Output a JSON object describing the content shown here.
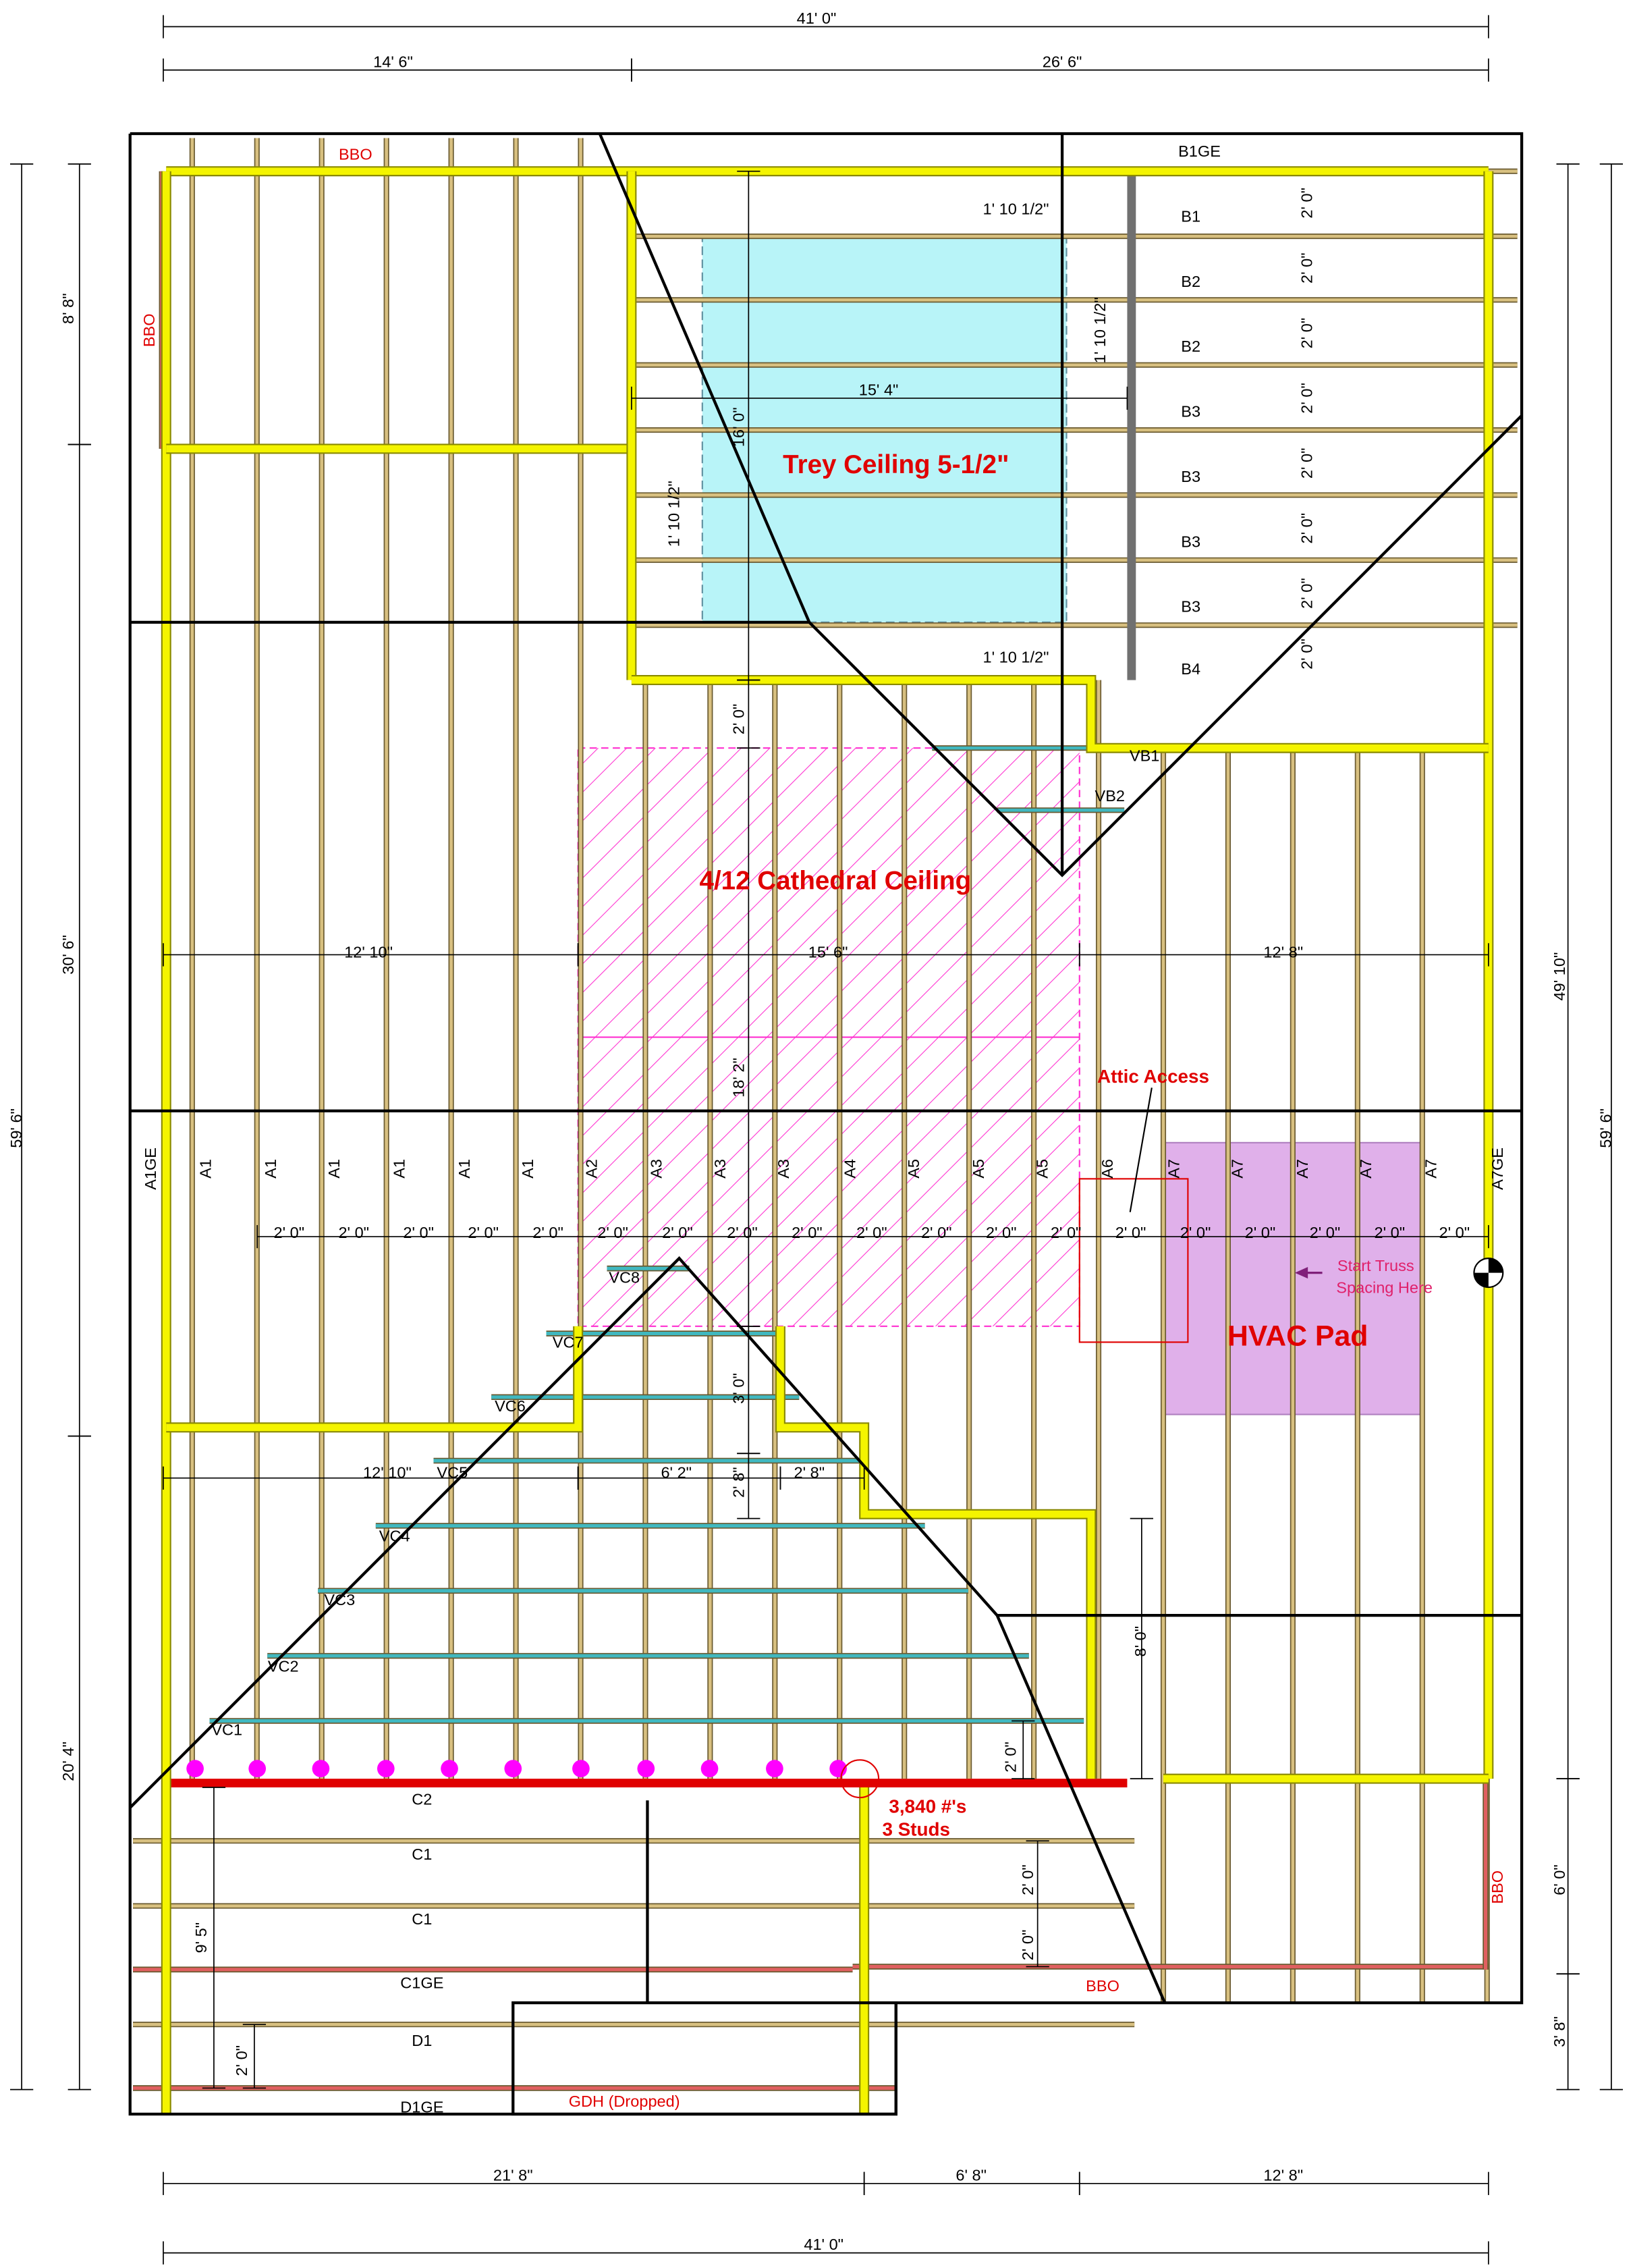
{
  "dimensions": {
    "top": [
      "41' 0\"",
      "14' 6\"",
      "26' 6\""
    ],
    "left": [
      "8' 8\"",
      "30' 6\"",
      "59' 6\"",
      "20' 4\""
    ],
    "right": [
      "49' 10\"",
      "59' 6\"",
      "6' 0\"",
      "3' 8\""
    ],
    "bottom": [
      "21' 8\"",
      "6' 8\"",
      "12' 8\"",
      "41' 0\""
    ],
    "interior": [
      "1' 10 1/2\"",
      "1' 10 1/2\"",
      "15' 4\"",
      "16' 0\"",
      "1' 10 1/2\"",
      "1' 10 1/2\"",
      "2' 0\"",
      "12' 10\"",
      "15' 6\"",
      "12' 8\"",
      "18' 2\"",
      "3' 0\"",
      "12' 10\"",
      "6' 2\"",
      "2' 8\"",
      "2' 8\"",
      "8' 0\"",
      "2' 0\"",
      "2' 0\"",
      "2' 0\"",
      "9' 5\"",
      "2' 0\""
    ]
  },
  "areas": {
    "trey": "Trey Ceiling 5-1/2\"",
    "cathedral": "4/12 Cathedral Ceiling",
    "hvac": "HVAC Pad",
    "attic": "Attic Access"
  },
  "truss_labels": [
    "A1GE",
    "A1",
    "A1",
    "A1",
    "A1",
    "A1",
    "A1",
    "A2",
    "A3",
    "A3",
    "A3",
    "A4",
    "A5",
    "A5",
    "A5",
    "A6",
    "A7",
    "A7",
    "A7",
    "A7",
    "A7",
    "A7GE"
  ],
  "truss_spacing": [
    "2' 0\"",
    "2' 0\"",
    "2' 0\"",
    "2' 0\"",
    "2' 0\"",
    "2' 0\"",
    "2' 0\"",
    "2' 0\"",
    "2' 0\"",
    "2' 0\"",
    "2' 0\"",
    "2' 0\"",
    "2' 0\"",
    "2' 0\"",
    "2' 0\"",
    "2' 0\"",
    "2' 0\"",
    "2' 0\"",
    "2' 0\""
  ],
  "b_labels": [
    "B1GE",
    "B1",
    "B2",
    "B2",
    "B3",
    "B3",
    "B3",
    "B3",
    "B4"
  ],
  "b_spacing": [
    "2' 0\"",
    "2' 0\"",
    "2' 0\"",
    "2' 0\"",
    "2' 0\"",
    "2' 0\"",
    "2' 0\"",
    "2' 0\""
  ],
  "vb_labels": [
    "VB1",
    "VB2"
  ],
  "vc_labels": [
    "VC8",
    "VC7",
    "VC6",
    "VC5",
    "VC4",
    "VC3",
    "VC2",
    "VC1"
  ],
  "c_labels": [
    "C2",
    "C1",
    "C1",
    "C1GE",
    "D1",
    "D1GE"
  ],
  "notes": {
    "bbo_top": "BBO",
    "bbo_left": "BBO",
    "bbo_bottom": "BBO",
    "bbo_right": "BBO",
    "gdh": "GDH (Dropped)",
    "load": "3,840 #'s",
    "studs": "3 Studs",
    "start_1": "Start Truss",
    "start_2": "Spacing Here"
  }
}
